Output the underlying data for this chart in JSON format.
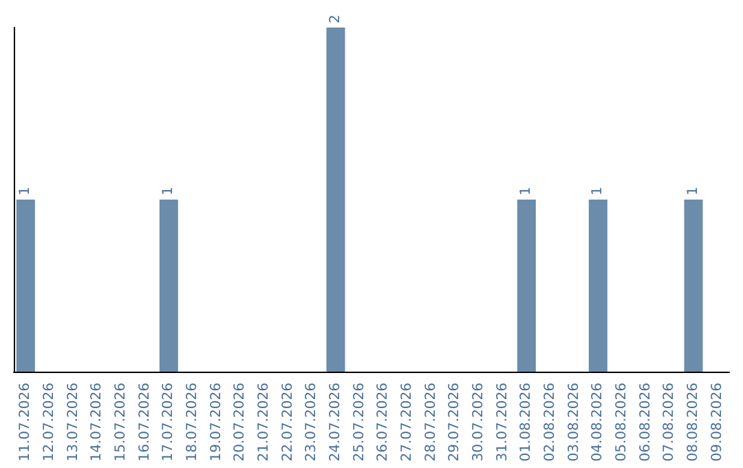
{
  "chart_data": {
    "type": "bar",
    "categories": [
      "11.07.2026",
      "12.07.2026",
      "13.07.2026",
      "14.07.2026",
      "15.07.2026",
      "16.07.2026",
      "17.07.2026",
      "18.07.2026",
      "19.07.2026",
      "20.07.2026",
      "21.07.2026",
      "22.07.2026",
      "23.07.2026",
      "24.07.2026",
      "25.07.2026",
      "26.07.2026",
      "27.07.2026",
      "28.07.2026",
      "29.07.2026",
      "30.07.2026",
      "31.07.2026",
      "01.08.2026",
      "02.08.2026",
      "03.08.2026",
      "04.08.2026",
      "05.08.2026",
      "06.08.2026",
      "07.08.2026",
      "08.08.2026",
      "09.08.2026"
    ],
    "values": [
      1,
      0,
      0,
      0,
      0,
      0,
      1,
      0,
      0,
      0,
      0,
      0,
      0,
      2,
      0,
      0,
      0,
      0,
      0,
      0,
      0,
      1,
      0,
      0,
      1,
      0,
      0,
      0,
      1,
      0
    ],
    "color": "#6b8cab",
    "value_labels": [
      "1",
      null,
      null,
      null,
      null,
      null,
      "1",
      null,
      null,
      null,
      null,
      null,
      null,
      "2",
      null,
      null,
      null,
      null,
      null,
      null,
      null,
      "1",
      null,
      null,
      "1",
      null,
      null,
      null,
      "1",
      null
    ],
    "tick_labels": "x"
  }
}
